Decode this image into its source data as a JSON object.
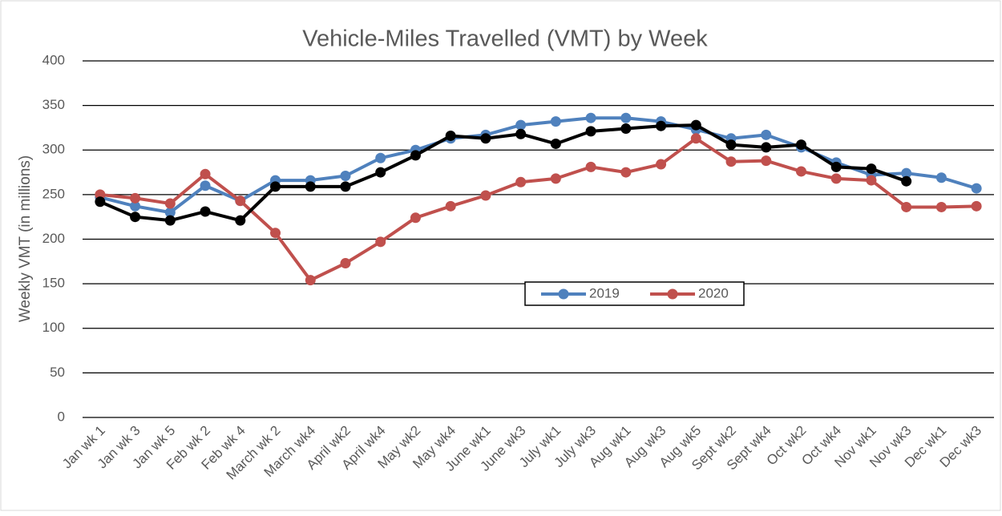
{
  "chart_data": {
    "type": "line",
    "title": "Vehicle-Miles Travelled (VMT) by Week",
    "y_label": "Weekly VMT (in millions)",
    "categories": [
      "Jan wk 1",
      "Jan wk 3",
      "Jan wk 5",
      "Feb wk 2",
      "Feb wk 4",
      "March wk 2",
      "March wk4",
      "April wk2",
      "April wk4",
      "May wk2",
      "May wk4",
      "June wk1",
      "June wk3",
      "July wk1",
      "July wk3",
      "Aug wk1",
      "Aug wk3",
      "Aug wk5",
      "Sept wk2",
      "Sept wk4",
      "Oct wk2",
      "Oct wk4",
      "Nov wk1",
      "Nov wk3",
      "Dec wk1",
      "Dec wk3"
    ],
    "series": [
      {
        "name": "2019",
        "color": "#4f81bd",
        "values": [
          247,
          237,
          230,
          260,
          243,
          266,
          266,
          271,
          291,
          300,
          313,
          317,
          328,
          332,
          336,
          336,
          332,
          323,
          313,
          317,
          303,
          286,
          272,
          274,
          269,
          257
        ]
      },
      {
        "name": "2020",
        "color": "#c0504d",
        "values": [
          250,
          246,
          240,
          273,
          243,
          207,
          154,
          173,
          197,
          224,
          237,
          249,
          264,
          268,
          281,
          275,
          284,
          313,
          287,
          288,
          276,
          268,
          266,
          236,
          236,
          237
        ]
      },
      {
        "color": "#000000",
        "values": [
          242,
          225,
          221,
          231,
          221,
          259,
          259,
          259,
          275,
          294,
          316,
          313,
          318,
          307,
          321,
          324,
          327,
          328,
          306,
          303,
          306,
          281,
          279,
          265,
          null,
          null
        ]
      }
    ],
    "ylim": [
      0,
      400
    ],
    "yticks": [
      0,
      50,
      100,
      150,
      200,
      250,
      300,
      350,
      400
    ],
    "grid": true
  }
}
